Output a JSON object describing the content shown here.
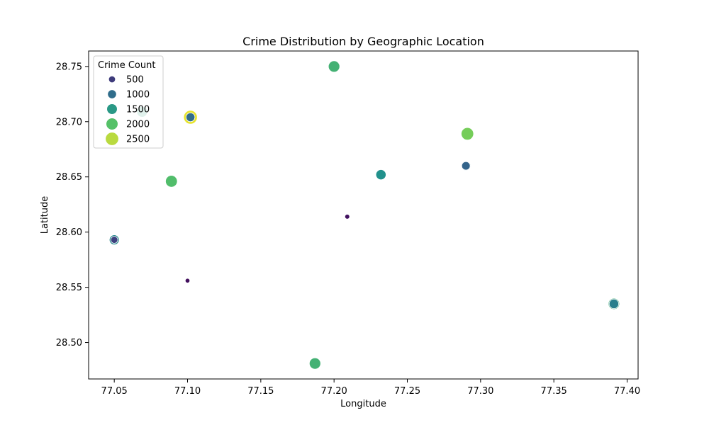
{
  "chart_data": {
    "type": "scatter",
    "title": "Crime Distribution by Geographic Location",
    "xlabel": "Longitude",
    "ylabel": "Latitude",
    "xlim": [
      77.0325,
      77.4075
    ],
    "ylim": [
      28.467,
      28.764
    ],
    "x_ticks": [
      "77.05",
      "77.10",
      "77.15",
      "77.20",
      "77.25",
      "77.30",
      "77.35",
      "77.40"
    ],
    "x_tick_values": [
      77.05,
      77.1,
      77.15,
      77.2,
      77.25,
      77.3,
      77.35,
      77.4
    ],
    "y_ticks": [
      "28.50",
      "28.55",
      "28.60",
      "28.65",
      "28.70",
      "28.75"
    ],
    "y_tick_values": [
      28.5,
      28.55,
      28.6,
      28.65,
      28.7,
      28.75
    ],
    "grid": false,
    "legend": {
      "title": "Crime Count",
      "placement": "top-left",
      "entries": [
        {
          "label": "500",
          "value": 500
        },
        {
          "label": "1000",
          "value": 1000
        },
        {
          "label": "1500",
          "value": 1500
        },
        {
          "label": "2000",
          "value": 2000
        },
        {
          "label": "2500",
          "value": 2500
        }
      ]
    },
    "size_range": [
      0,
      2800
    ],
    "color_scale": [
      "#440154",
      "#3b528b",
      "#21918c",
      "#5ec962",
      "#fde725"
    ],
    "points": [
      {
        "x": 77.069,
        "y": 28.709,
        "count": 1600
      },
      {
        "x": 77.102,
        "y": 28.704,
        "count": 2700
      },
      {
        "x": 77.102,
        "y": 28.704,
        "count": 1000
      },
      {
        "x": 77.2,
        "y": 28.75,
        "count": 1800
      },
      {
        "x": 77.291,
        "y": 28.689,
        "count": 2200
      },
      {
        "x": 77.29,
        "y": 28.66,
        "count": 1150
      },
      {
        "x": 77.29,
        "y": 28.66,
        "count": 900
      },
      {
        "x": 77.232,
        "y": 28.652,
        "count": 1400
      },
      {
        "x": 77.089,
        "y": 28.646,
        "count": 1950
      },
      {
        "x": 77.209,
        "y": 28.614,
        "count": 150
      },
      {
        "x": 77.05,
        "y": 28.593,
        "count": 1300
      },
      {
        "x": 77.05,
        "y": 28.593,
        "count": 550
      },
      {
        "x": 77.1,
        "y": 28.556,
        "count": 120
      },
      {
        "x": 77.391,
        "y": 28.535,
        "count": 1750
      },
      {
        "x": 77.391,
        "y": 28.535,
        "count": 1200
      },
      {
        "x": 77.187,
        "y": 28.481,
        "count": 1800
      }
    ]
  }
}
